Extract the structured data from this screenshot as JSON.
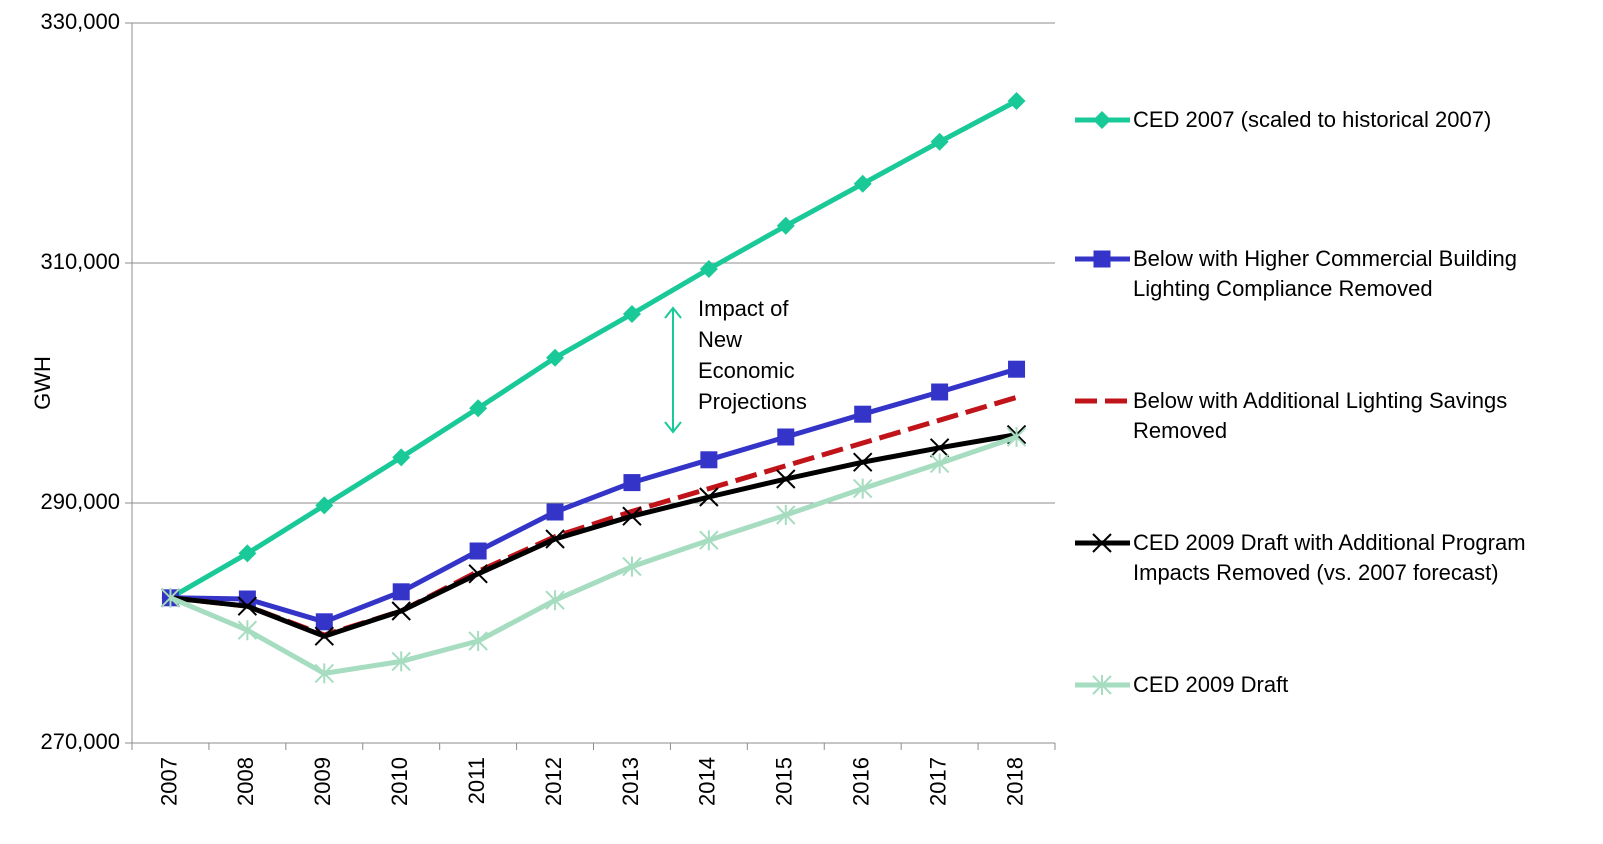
{
  "chart_data": {
    "type": "line",
    "y_label": "GWH",
    "annotation": {
      "lines": [
        "Impact of",
        "New",
        "Economic",
        "Projections"
      ]
    },
    "categories": [
      "2007",
      "2008",
      "2009",
      "2010",
      "2011",
      "2012",
      "2013",
      "2014",
      "2015",
      "2016",
      "2017",
      "2018"
    ],
    "series": [
      {
        "name": "CED 2007 (scaled to historical 2007)",
        "color": "#19c997",
        "marker": "diamond",
        "dash": false,
        "values": [
          282100,
          285800,
          289800,
          293800,
          297900,
          302100,
          305750,
          309500,
          313100,
          316600,
          320100,
          323500
        ]
      },
      {
        "name": "Below with Higher Commercial Building Lighting Compliance Removed",
        "color": "#3434c8",
        "marker": "square",
        "dash": false,
        "values": [
          282100,
          282000,
          280100,
          282600,
          286000,
          289250,
          291700,
          293600,
          295500,
          297400,
          299250,
          301150
        ]
      },
      {
        "name": "Below with Additional Lighting Savings Removed",
        "color": "#c0141a",
        "marker": "none",
        "dash": true,
        "values": [
          282100,
          281400,
          279000,
          281000,
          284300,
          287200,
          289300,
          291200,
          293100,
          295000,
          296900,
          298800
        ]
      },
      {
        "name": "CED 2009 Draft with Additional Program Impacts Removed (vs. 2007 forecast)",
        "color": "#000000",
        "marker": "x",
        "dash": false,
        "values": [
          282100,
          281400,
          278900,
          281000,
          284100,
          287000,
          288900,
          290500,
          292000,
          293400,
          294600,
          295700
        ]
      },
      {
        "name": "CED 2009 Draft",
        "color": "#a6dcc0",
        "marker": "star",
        "dash": false,
        "values": [
          282100,
          279400,
          275800,
          276800,
          278500,
          281900,
          284700,
          286900,
          289000,
          291200,
          293300,
          295500
        ]
      }
    ],
    "ylim": [
      270000,
      330000
    ],
    "yticks": [
      {
        "value": 270000,
        "label": "270,000"
      },
      {
        "value": 290000,
        "label": "290,000"
      },
      {
        "value": 310000,
        "label": "310,000"
      },
      {
        "value": 330000,
        "label": "330,000"
      }
    ],
    "grid": true
  }
}
